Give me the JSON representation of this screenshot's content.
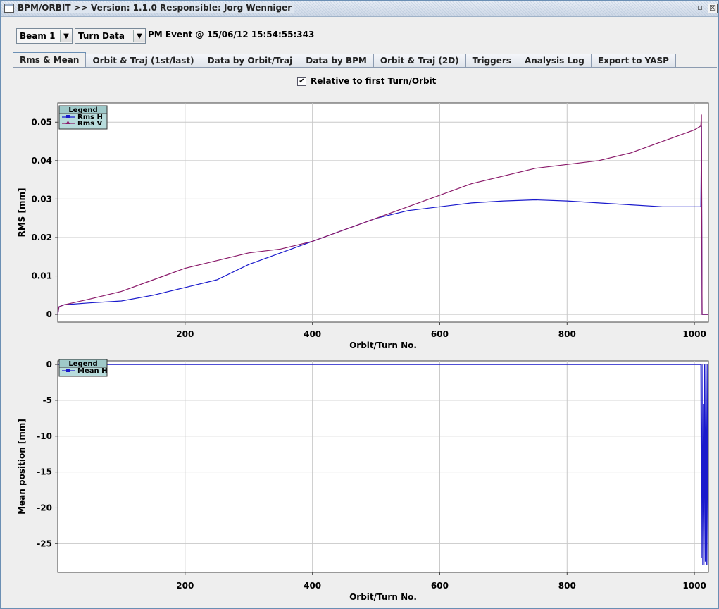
{
  "window": {
    "title": "BPM/ORBIT >> Version: 1.1.0  Responsible: Jorg Wenniger",
    "min_glyph": "▫",
    "close_glyph": "☒"
  },
  "toolbar": {
    "beam_select": "Beam 1",
    "data_select": "Turn Data",
    "arrow": "▼",
    "event_label": "PM Event @ 15/06/12 15:54:55:343"
  },
  "tabs": [
    {
      "label": "Rms & Mean",
      "active": true
    },
    {
      "label": "Orbit & Traj (1st/last)",
      "active": false
    },
    {
      "label": "Data by Orbit/Traj",
      "active": false
    },
    {
      "label": "Data by BPM",
      "active": false
    },
    {
      "label": "Orbit & Traj (2D)",
      "active": false
    },
    {
      "label": "Triggers",
      "active": false
    },
    {
      "label": "Analysis Log",
      "active": false
    },
    {
      "label": "Export to YASP",
      "active": false
    }
  ],
  "options": {
    "relative_checkbox_label": "Relative to first Turn/Orbit",
    "relative_checked": true,
    "check_glyph": "✔"
  },
  "chart_data": [
    {
      "type": "line",
      "legend_title": "Legend",
      "legend_placement": "top-left",
      "xlabel": "Orbit/Turn No.",
      "ylabel": "RMS [mm]",
      "xlim": [
        0,
        1022
      ],
      "ylim": [
        -0.002,
        0.055
      ],
      "xticks": [
        200,
        400,
        600,
        800,
        1000
      ],
      "yticks": [
        0,
        0.01,
        0.02,
        0.03,
        0.04,
        0.05
      ],
      "ytick_labels": [
        "0",
        "0.01",
        "0.02",
        "0.03",
        "0.04",
        "0.05"
      ],
      "grid": true,
      "series": [
        {
          "name": "Rms H",
          "color": "#1a1acc",
          "marker": "square",
          "x": [
            0,
            2,
            10,
            50,
            100,
            150,
            200,
            250,
            300,
            350,
            400,
            450,
            500,
            550,
            600,
            650,
            700,
            750,
            800,
            850,
            900,
            950,
            1000,
            1010,
            1011,
            1012,
            1013,
            1022
          ],
          "y": [
            0,
            0.002,
            0.0025,
            0.003,
            0.0035,
            0.005,
            0.007,
            0.009,
            0.013,
            0.016,
            0.019,
            0.022,
            0.025,
            0.027,
            0.028,
            0.029,
            0.0295,
            0.0298,
            0.0295,
            0.029,
            0.0285,
            0.028,
            0.028,
            0.028,
            0.049,
            0.0,
            0.0,
            0.0
          ]
        },
        {
          "name": "Rms V",
          "color": "#8a1a6a",
          "marker": "triangle",
          "x": [
            0,
            2,
            10,
            50,
            100,
            150,
            200,
            250,
            300,
            350,
            400,
            450,
            500,
            550,
            600,
            650,
            700,
            750,
            800,
            850,
            900,
            950,
            1000,
            1010,
            1011,
            1012,
            1013,
            1022
          ],
          "y": [
            0,
            0.002,
            0.0025,
            0.004,
            0.006,
            0.009,
            0.012,
            0.014,
            0.016,
            0.017,
            0.019,
            0.022,
            0.025,
            0.028,
            0.031,
            0.034,
            0.036,
            0.038,
            0.039,
            0.04,
            0.042,
            0.045,
            0.048,
            0.049,
            0.052,
            0.0,
            0.0,
            0.0
          ]
        }
      ]
    },
    {
      "type": "line",
      "legend_title": "Legend",
      "legend_placement": "top-left",
      "xlabel": "Orbit/Turn No.",
      "ylabel": "Mean position [mm]",
      "xlim": [
        0,
        1022
      ],
      "ylim": [
        -29,
        0.5
      ],
      "xticks": [
        200,
        400,
        600,
        800,
        1000
      ],
      "yticks": [
        0,
        -5,
        -10,
        -15,
        -20,
        -25
      ],
      "ytick_labels": [
        "0",
        "-5",
        "-10",
        "-15",
        "-20",
        "-25"
      ],
      "grid": true,
      "series": [
        {
          "name": "Mean H",
          "color": "#1a1acc",
          "marker": "square",
          "x": [
            0,
            1010,
            1011,
            1012,
            1013,
            1014,
            1015,
            1016,
            1017,
            1018,
            1019,
            1020,
            1021
          ],
          "y": [
            0,
            0,
            -27,
            0,
            -28,
            -5.5,
            -28,
            0,
            -27.5,
            0,
            -28,
            0,
            -28
          ]
        }
      ]
    }
  ]
}
